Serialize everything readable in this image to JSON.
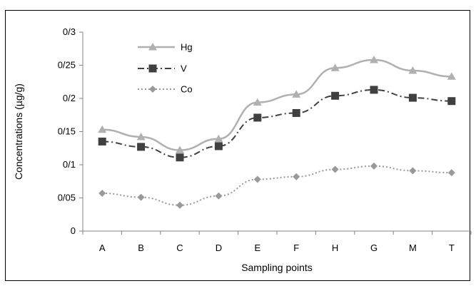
{
  "chart_data": {
    "type": "line",
    "title": "",
    "xlabel": "Sampling points",
    "ylabel": "Concentrations (µg/g)",
    "categories": [
      "A",
      "B",
      "C",
      "D",
      "E",
      "F",
      "H",
      "G",
      "M",
      "T"
    ],
    "ylim": [
      0,
      0.3
    ],
    "yticks": [
      0,
      0.05,
      0.1,
      0.15,
      0.2,
      0.25,
      0.3
    ],
    "ytick_labels": [
      "0",
      "0/05",
      "0/1",
      "0/15",
      "0/2",
      "0/25",
      "0/3"
    ],
    "grid": false,
    "legend_position": "top-left",
    "series": [
      {
        "name": "Hg",
        "values": [
          0.153,
          0.142,
          0.122,
          0.139,
          0.194,
          0.206,
          0.246,
          0.258,
          0.242,
          0.233
        ],
        "color": "#b0b0b0",
        "marker": "triangle",
        "line_style": "solid"
      },
      {
        "name": "V",
        "values": [
          0.135,
          0.127,
          0.111,
          0.128,
          0.171,
          0.178,
          0.204,
          0.213,
          0.201,
          0.196
        ],
        "color": "#404040",
        "marker": "square",
        "line_style": "dash-dot"
      },
      {
        "name": "Co",
        "values": [
          0.057,
          0.051,
          0.039,
          0.053,
          0.078,
          0.082,
          0.093,
          0.098,
          0.091,
          0.088
        ],
        "color": "#999999",
        "marker": "diamond",
        "line_style": "dotted"
      }
    ]
  }
}
